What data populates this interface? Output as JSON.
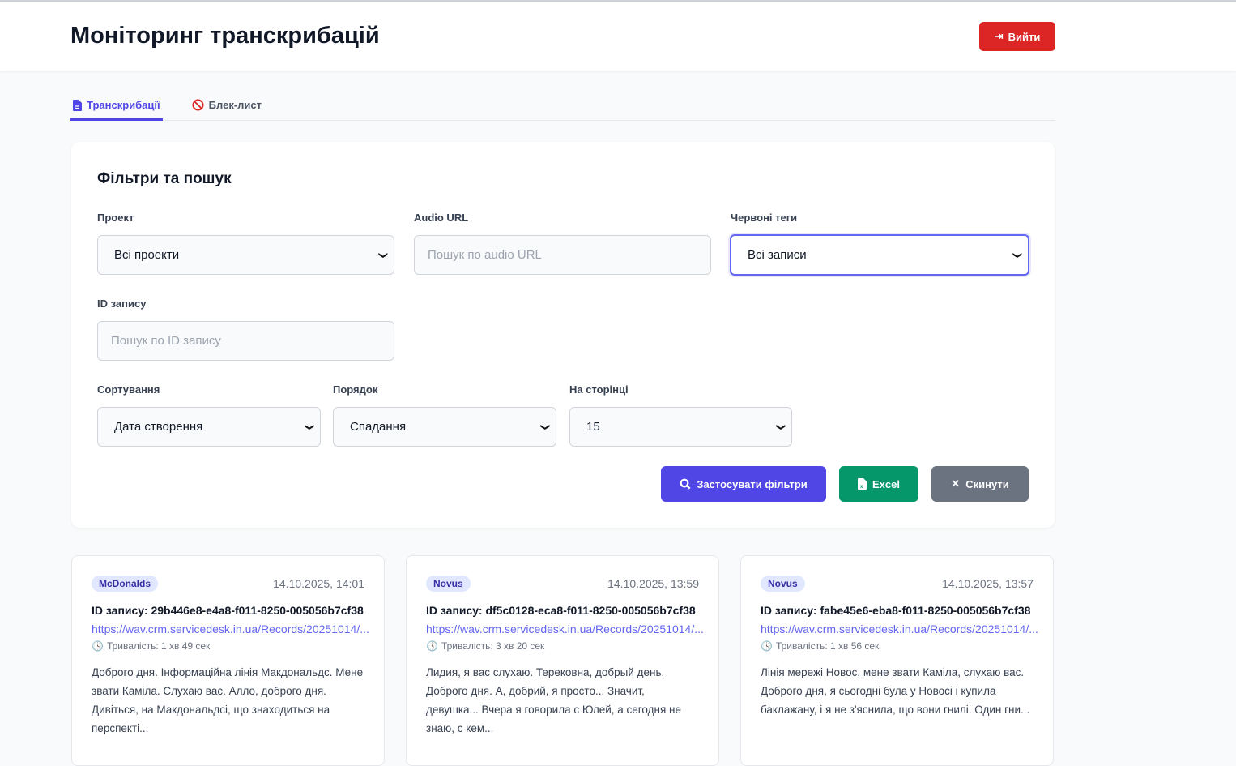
{
  "header": {
    "title": "Моніторинг транскрибацій",
    "logout_label": "Вийти"
  },
  "tabs": [
    {
      "label": "Транскрибації",
      "icon": "file-icon",
      "active": true
    },
    {
      "label": "Блек-лист",
      "icon": "ban-icon",
      "active": false
    }
  ],
  "filters": {
    "heading": "Фільтри та пошук",
    "project": {
      "label": "Проект",
      "value": "Всі проекти"
    },
    "audio_url": {
      "label": "Audio URL",
      "placeholder": "Пошук по audio URL"
    },
    "red_tags": {
      "label": "Червоні теги",
      "value": "Всі записи"
    },
    "record_id": {
      "label": "ID запису",
      "placeholder": "Пошук по ID запису"
    },
    "sort": {
      "label": "Сортування",
      "value": "Дата створення"
    },
    "order": {
      "label": "Порядок",
      "value": "Спадання"
    },
    "per_page": {
      "label": "На сторінці",
      "value": "15"
    },
    "apply_label": "Застосувати фільтри",
    "excel_label": "Excel",
    "reset_label": "Скинути"
  },
  "records": [
    {
      "project": "McDonalds",
      "date": "14.10.2025, 14:01",
      "id": "ID запису: 29b446e8-e4a8-f011-8250-005056b7cf38",
      "url": "https://wav.crm.servicedesk.in.ua/Records/20251014/...",
      "duration": "Тривалість: 1 хв 49 сек",
      "text": "Доброго дня. Інформаційна лінія Макдональдс. Мене звати Каміла. Слухаю вас. Алло, доброго дня. Дивіться, на Макдональдсі, що знаходиться на перспекті..."
    },
    {
      "project": "Novus",
      "date": "14.10.2025, 13:59",
      "id": "ID запису: df5c0128-eca8-f011-8250-005056b7cf38",
      "url": "https://wav.crm.servicedesk.in.ua/Records/20251014/...",
      "duration": "Тривалість: 3 хв 20 сек",
      "text": "Лидия, я вас слухаю. Терековна, добрый день. Доброго дня. А, добрий, я просто... Значит, девушка... Вчера я говорила с Юлей, а сегодня не знаю, с кем..."
    },
    {
      "project": "Novus",
      "date": "14.10.2025, 13:57",
      "id": "ID запису: fabe45e6-eba8-f011-8250-005056b7cf38",
      "url": "https://wav.crm.servicedesk.in.ua/Records/20251014/...",
      "duration": "Тривалість: 1 хв 56 сек",
      "text": "Лінія мережі Новос, мене звати Каміла, слухаю вас. Доброго дня, я сьогодні була у Новосі і купила баклажану, і я не з'яснила, що вони гнилі. Один гни..."
    }
  ],
  "colors": {
    "accent": "#4f46e5",
    "danger": "#dc2626",
    "success": "#059669",
    "secondary": "#6b7280"
  }
}
